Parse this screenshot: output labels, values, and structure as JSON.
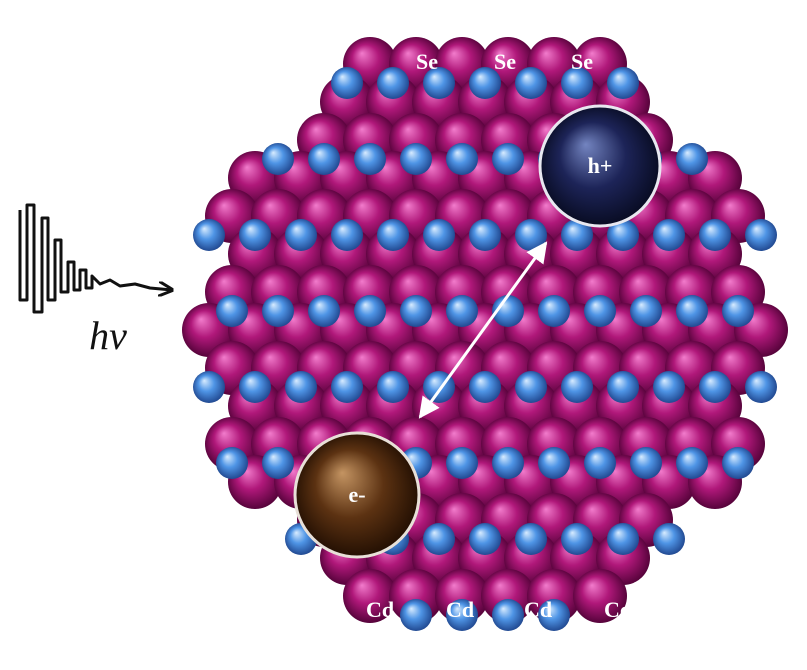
{
  "labels": {
    "se": [
      "Se",
      "Se",
      "Se"
    ],
    "cd": [
      "Cd",
      "Cd",
      "Cd",
      "Cd"
    ],
    "hole": "h+",
    "electron": "e-",
    "photon": "hv"
  }
}
